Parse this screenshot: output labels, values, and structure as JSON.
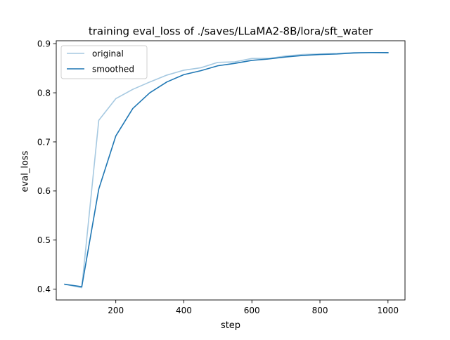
{
  "chart_data": {
    "type": "line",
    "title": "training eval_loss of ./saves/LLaMA2-8B/lora/sft_water",
    "xlabel": "step",
    "ylabel": "eval_loss",
    "xlim": [
      25,
      1050
    ],
    "ylim": [
      0.378,
      0.906
    ],
    "xticks": [
      200,
      400,
      600,
      800,
      1000
    ],
    "yticks": [
      0.4,
      0.5,
      0.6,
      0.7,
      0.8,
      0.9
    ],
    "grid": false,
    "legend_position": "top-left",
    "series": [
      {
        "name": "original",
        "color": "#a6c9e1",
        "x": [
          50,
          100,
          150,
          200,
          250,
          300,
          350,
          400,
          450,
          500,
          550,
          600,
          650,
          700,
          750,
          800,
          850,
          900,
          950,
          1000
        ],
        "y": [
          0.41,
          0.403,
          0.744,
          0.788,
          0.807,
          0.822,
          0.836,
          0.846,
          0.851,
          0.862,
          0.863,
          0.87,
          0.87,
          0.875,
          0.878,
          0.879,
          0.88,
          0.882,
          0.882,
          0.881
        ]
      },
      {
        "name": "smoothed",
        "color": "#1f77b4",
        "x": [
          50,
          100,
          150,
          200,
          250,
          300,
          350,
          400,
          450,
          500,
          550,
          600,
          650,
          700,
          750,
          800,
          850,
          900,
          950,
          1000
        ],
        "y": [
          0.41,
          0.405,
          0.604,
          0.712,
          0.768,
          0.8,
          0.822,
          0.837,
          0.845,
          0.855,
          0.86,
          0.866,
          0.869,
          0.873,
          0.876,
          0.878,
          0.879,
          0.881,
          0.882,
          0.882
        ]
      }
    ]
  }
}
